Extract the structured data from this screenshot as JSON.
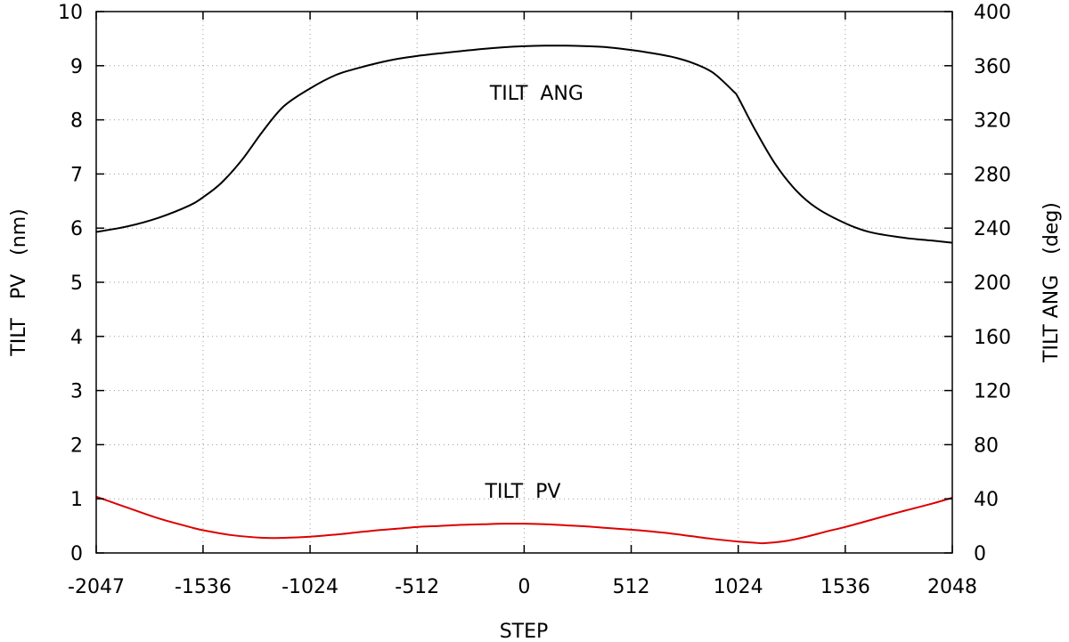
{
  "chart_data": {
    "type": "line",
    "title": "",
    "xlabel": "STEP",
    "ylabel_left": "TILT PV (nm)",
    "ylabel_left_parts": [
      "TILT",
      "PV",
      "(nm)"
    ],
    "ylabel_right": "TILT ANG (deg)",
    "ylabel_right_parts": [
      "TILT ANG",
      "(deg)"
    ],
    "xlim": [
      -2047,
      2048
    ],
    "ylim_left": [
      0,
      10
    ],
    "ylim_right": [
      0,
      400
    ],
    "x_ticks": [
      -2047,
      -1536,
      -1024,
      -512,
      0,
      512,
      1024,
      1536,
      2048
    ],
    "y_left_ticks": [
      0,
      1,
      2,
      3,
      4,
      5,
      6,
      7,
      8,
      9,
      10
    ],
    "y_right_ticks": [
      0,
      40,
      80,
      120,
      160,
      200,
      240,
      280,
      320,
      360,
      400
    ],
    "grid": true,
    "annotations": [
      {
        "text": "TILT  ANG",
        "x": 0,
        "y": 8.5,
        "axis": "left"
      },
      {
        "text": "TILT  PV",
        "x": -6,
        "y": 1.15,
        "axis": "left"
      }
    ],
    "series": [
      {
        "name": "TILT ANG",
        "axis": "right",
        "color": "#000000",
        "x": [
          -2047,
          -1900,
          -1750,
          -1600,
          -1536,
          -1450,
          -1350,
          -1250,
          -1150,
          -1024,
          -900,
          -800,
          -700,
          -600,
          -512,
          -400,
          -300,
          -200,
          -100,
          0,
          100,
          200,
          300,
          400,
          512,
          600,
          700,
          800,
          900,
          1000,
          1024,
          1100,
          1200,
          1300,
          1400,
          1536,
          1650,
          1800,
          1950,
          2048
        ],
        "values": [
          237.2,
          241.2,
          247.6,
          256.8,
          262.8,
          273.2,
          290.4,
          311.6,
          330.0,
          343.2,
          353.2,
          358.0,
          362.0,
          365.2,
          367.2,
          369.2,
          370.8,
          372.4,
          373.6,
          374.4,
          374.8,
          374.8,
          374.4,
          373.6,
          371.6,
          369.6,
          366.8,
          362.4,
          355.2,
          341.2,
          336.4,
          314.0,
          287.6,
          268.0,
          254.8,
          243.6,
          237.2,
          233.2,
          230.8,
          229.2
        ]
      },
      {
        "name": "TILT PV",
        "axis": "left",
        "color": "#dd0000",
        "x": [
          -2047,
          -1900,
          -1750,
          -1600,
          -1536,
          -1400,
          -1250,
          -1150,
          -1024,
          -900,
          -800,
          -700,
          -600,
          -512,
          -400,
          -300,
          -200,
          -100,
          0,
          100,
          200,
          300,
          400,
          512,
          600,
          700,
          800,
          900,
          1024,
          1100,
          1150,
          1250,
          1350,
          1450,
          1536,
          1650,
          1800,
          1950,
          2048
        ],
        "values": [
          1.04,
          0.84,
          0.64,
          0.48,
          0.42,
          0.33,
          0.28,
          0.28,
          0.3,
          0.34,
          0.38,
          0.42,
          0.45,
          0.48,
          0.5,
          0.52,
          0.53,
          0.54,
          0.54,
          0.53,
          0.51,
          0.49,
          0.46,
          0.43,
          0.4,
          0.36,
          0.31,
          0.26,
          0.21,
          0.19,
          0.18,
          0.22,
          0.3,
          0.4,
          0.48,
          0.6,
          0.76,
          0.91,
          1.02
        ]
      }
    ]
  }
}
